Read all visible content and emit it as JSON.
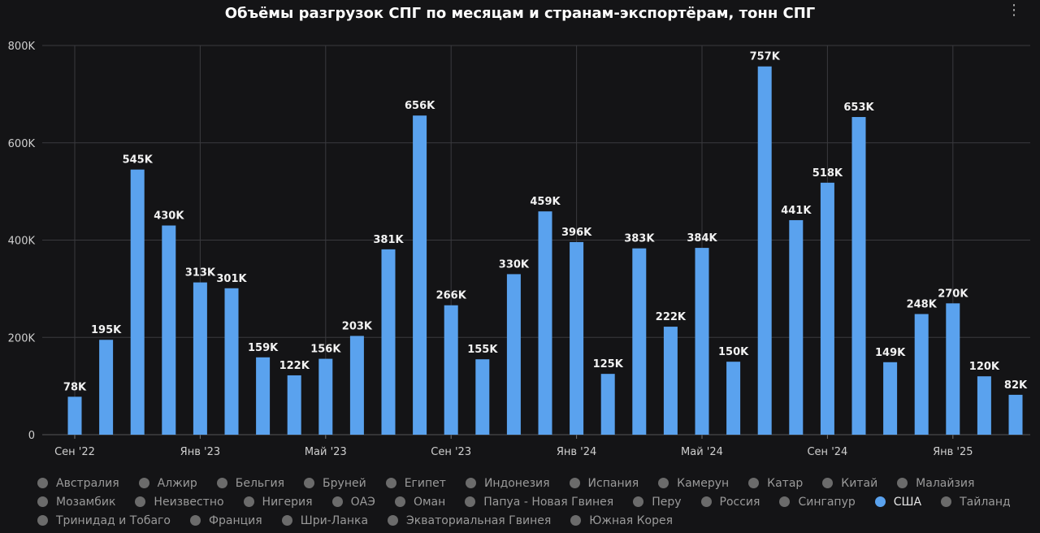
{
  "menu_label": "⋮",
  "colors": {
    "bar": "#5aa2ee",
    "grid": "#3a3a3e",
    "background": "#141416"
  },
  "chart_data": {
    "type": "bar",
    "title": "Объёмы разгрузок СПГ по месяцам и странам-экспортёрам, тонн СПГ",
    "ylim": [
      0,
      800000
    ],
    "y_ticks": [
      0,
      200000,
      400000,
      600000,
      800000
    ],
    "y_tick_labels": [
      "0",
      "200K",
      "400K",
      "600K",
      "800K"
    ],
    "x_tick_labels": [
      {
        "index": 0,
        "label": "Сен '22"
      },
      {
        "index": 4,
        "label": "Янв '23"
      },
      {
        "index": 8,
        "label": "Май '23"
      },
      {
        "index": 12,
        "label": "Сен '23"
      },
      {
        "index": 16,
        "label": "Янв '24"
      },
      {
        "index": 20,
        "label": "Май '24"
      },
      {
        "index": 24,
        "label": "Сен '24"
      },
      {
        "index": 28,
        "label": "Янв '25"
      }
    ],
    "grid": true,
    "legend_position": "bottom",
    "series": [
      {
        "name": "США",
        "values": [
          78000,
          195000,
          545000,
          430000,
          313000,
          301000,
          159000,
          122000,
          156000,
          203000,
          381000,
          656000,
          266000,
          155000,
          330000,
          459000,
          396000,
          125000,
          383000,
          222000,
          384000,
          150000,
          757000,
          441000,
          518000,
          653000,
          149000,
          248000,
          270000,
          120000,
          82000
        ],
        "labels": [
          "78K",
          "195K",
          "545K",
          "430K",
          "313K",
          "301K",
          "159K",
          "122K",
          "156K",
          "203K",
          "381K",
          "656K",
          "266K",
          "155K",
          "330K",
          "459K",
          "396K",
          "125K",
          "383K",
          "222K",
          "384K",
          "150K",
          "757K",
          "441K",
          "518K",
          "653K",
          "149K",
          "248K",
          "270K",
          "120K",
          "82K"
        ]
      }
    ]
  },
  "legend": [
    {
      "label": "Австралия",
      "active": false
    },
    {
      "label": "Алжир",
      "active": false
    },
    {
      "label": "Бельгия",
      "active": false
    },
    {
      "label": "Бруней",
      "active": false
    },
    {
      "label": "Египет",
      "active": false
    },
    {
      "label": "Индонезия",
      "active": false
    },
    {
      "label": "Испания",
      "active": false
    },
    {
      "label": "Камерун",
      "active": false
    },
    {
      "label": "Катар",
      "active": false
    },
    {
      "label": "Китай",
      "active": false
    },
    {
      "label": "Малайзия",
      "active": false
    },
    {
      "label": "Мозамбик",
      "active": false
    },
    {
      "label": "Неизвестно",
      "active": false
    },
    {
      "label": "Нигерия",
      "active": false
    },
    {
      "label": "ОАЭ",
      "active": false
    },
    {
      "label": "Оман",
      "active": false
    },
    {
      "label": "Папуа - Новая Гвинея",
      "active": false
    },
    {
      "label": "Перу",
      "active": false
    },
    {
      "label": "Россия",
      "active": false
    },
    {
      "label": "Сингапур",
      "active": false
    },
    {
      "label": "США",
      "active": true
    },
    {
      "label": "Тайланд",
      "active": false
    },
    {
      "label": "Тринидад и Тобаго",
      "active": false
    },
    {
      "label": "Франция",
      "active": false
    },
    {
      "label": "Шри-Ланка",
      "active": false
    },
    {
      "label": "Экваториальная Гвинея",
      "active": false
    },
    {
      "label": "Южная Корея",
      "active": false
    }
  ]
}
